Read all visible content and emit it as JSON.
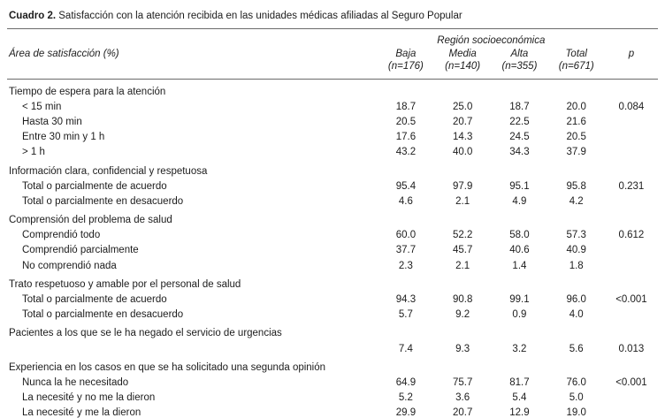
{
  "title": {
    "label": "Cuadro 2.",
    "text": "Satisfacción con la atención recibida en las unidades médicas afiliadas al Seguro Popular"
  },
  "table": {
    "area_header": "Área de satisfacción (%)",
    "group_header": "Región socioeconómica",
    "p_header": "p",
    "columns": [
      {
        "name": "Baja",
        "n": "(n=176)"
      },
      {
        "name": "Media",
        "n": "(n=140)"
      },
      {
        "name": "Alta",
        "n": "(n=355)"
      },
      {
        "name": "Total",
        "n": "(n=671)"
      }
    ],
    "sections": [
      {
        "header": "Tiempo de espera para la atención",
        "rows": [
          {
            "label": "< 15 min",
            "values": [
              "18.7",
              "25.0",
              "18.7",
              "20.0"
            ],
            "p": "0.084"
          },
          {
            "label": "Hasta 30 min",
            "values": [
              "20.5",
              "20.7",
              "22.5",
              "21.6"
            ],
            "p": ""
          },
          {
            "label": "Entre 30 min y 1 h",
            "values": [
              "17.6",
              "14.3",
              "24.5",
              "20.5"
            ],
            "p": ""
          },
          {
            "label": "> 1 h",
            "values": [
              "43.2",
              "40.0",
              "34.3",
              "37.9"
            ],
            "p": ""
          }
        ]
      },
      {
        "header": "Información clara, confidencial y respetuosa",
        "rows": [
          {
            "label": "Total o parcialmente de acuerdo",
            "values": [
              "95.4",
              "97.9",
              "95.1",
              "95.8"
            ],
            "p": "0.231"
          },
          {
            "label": "Total o parcialmente en desacuerdo",
            "values": [
              "4.6",
              "2.1",
              "4.9",
              "4.2"
            ],
            "p": ""
          }
        ]
      },
      {
        "header": "Comprensión del problema de salud",
        "rows": [
          {
            "label": "Comprendió todo",
            "values": [
              "60.0",
              "52.2",
              "58.0",
              "57.3"
            ],
            "p": "0.612"
          },
          {
            "label": "Comprendió parcialmente",
            "values": [
              "37.7",
              "45.7",
              "40.6",
              "40.9"
            ],
            "p": ""
          },
          {
            "label": "No comprendió nada",
            "values": [
              "2.3",
              "2.1",
              "1.4",
              "1.8"
            ],
            "p": ""
          }
        ]
      },
      {
        "header": "Trato respetuoso y amable por el personal de salud",
        "rows": [
          {
            "label": "Total o parcialmente de acuerdo",
            "values": [
              "94.3",
              "90.8",
              "99.1",
              "96.0"
            ],
            "p": "<0.001"
          },
          {
            "label": "Total o parcialmente en desacuerdo",
            "values": [
              "5.7",
              "9.2",
              "0.9",
              "4.0"
            ],
            "p": ""
          }
        ]
      },
      {
        "header": "Pacientes a los que se le ha negado el servicio de urgencias",
        "rows": [
          {
            "label": "",
            "values": [
              "7.4",
              "9.3",
              "3.2",
              "5.6"
            ],
            "p": "0.013"
          }
        ]
      },
      {
        "header": "Experiencia en los casos en que se ha solicitado una segunda opinión",
        "rows": [
          {
            "label": "Nunca la he necesitado",
            "values": [
              "64.9",
              "75.7",
              "81.7",
              "76.0"
            ],
            "p": "<0.001"
          },
          {
            "label": "La necesité y no me la dieron",
            "values": [
              "5.2",
              "3.6",
              "5.4",
              "5.0"
            ],
            "p": ""
          },
          {
            "label": "La necesité y me la dieron",
            "values": [
              "29.9",
              "20.7",
              "12.9",
              "19.0"
            ],
            "p": ""
          }
        ]
      }
    ]
  }
}
